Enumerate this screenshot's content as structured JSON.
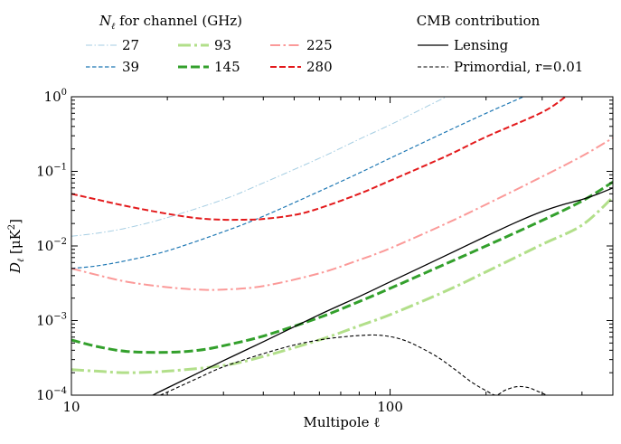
{
  "chart_data": {
    "type": "line",
    "xscale": "log",
    "yscale": "log",
    "xlim": [
      10,
      500
    ],
    "ylim": [
      0.0001,
      1
    ],
    "xlabel": "Multipole ℓ",
    "ylabel_main": "D",
    "ylabel_sub": "ℓ",
    "ylabel_unit": " [μK",
    "ylabel_exp": "2",
    "ylabel_close": "]",
    "x_ticks": [
      {
        "value": 10,
        "base": "10",
        "exp": "1",
        "plain": "10"
      },
      {
        "value": 100,
        "base": "10",
        "exp": "2",
        "plain": "100"
      }
    ],
    "y_ticks": [
      {
        "value": 0.0001,
        "base": "10",
        "exp": "−4"
      },
      {
        "value": 0.001,
        "base": "10",
        "exp": "−3"
      },
      {
        "value": 0.01,
        "base": "10",
        "exp": "−2"
      },
      {
        "value": 0.1,
        "base": "10",
        "exp": "−1"
      },
      {
        "value": 1,
        "base": "10",
        "exp": "0"
      }
    ],
    "legend_noise_title_sym": "N",
    "legend_noise_title_sub": "ℓ",
    "legend_noise_title_rest": " for channel (GHz)",
    "legend_noise_placement": "top-left (above axes)",
    "legend_cmb_title": "CMB contribution",
    "legend_cmb_placement": "top-right (above axes)",
    "noise_series": [
      {
        "name": "27",
        "color": "#a6cee3",
        "style": "dashdot-thin",
        "points": [
          [
            10,
            0.0135
          ],
          [
            12,
            0.0148
          ],
          [
            15,
            0.0175
          ],
          [
            20,
            0.024
          ],
          [
            30,
            0.042
          ],
          [
            40,
            0.07
          ],
          [
            60,
            0.15
          ],
          [
            80,
            0.27
          ],
          [
            100,
            0.42
          ],
          [
            120,
            0.62
          ],
          [
            150,
            1.0
          ]
        ]
      },
      {
        "name": "39",
        "color": "#1f78b4",
        "style": "dashed-thin",
        "points": [
          [
            10,
            0.005
          ],
          [
            12,
            0.0054
          ],
          [
            15,
            0.0064
          ],
          [
            20,
            0.0086
          ],
          [
            30,
            0.0155
          ],
          [
            40,
            0.025
          ],
          [
            60,
            0.054
          ],
          [
            80,
            0.095
          ],
          [
            100,
            0.15
          ],
          [
            150,
            0.34
          ],
          [
            200,
            0.6
          ],
          [
            262,
            1.0
          ]
        ]
      },
      {
        "name": "93",
        "color": "#b2df8a",
        "style": "dashdot-thick",
        "points": [
          [
            10,
            0.00022
          ],
          [
            12,
            0.00021
          ],
          [
            15,
            0.0002
          ],
          [
            20,
            0.00021
          ],
          [
            30,
            0.00025
          ],
          [
            40,
            0.00033
          ],
          [
            60,
            0.00055
          ],
          [
            80,
            0.00085
          ],
          [
            100,
            0.0012
          ],
          [
            150,
            0.0025
          ],
          [
            200,
            0.0045
          ],
          [
            300,
            0.0105
          ],
          [
            400,
            0.019
          ],
          [
            500,
            0.045
          ]
        ]
      },
      {
        "name": "145",
        "color": "#33a02c",
        "style": "dashed-thick",
        "points": [
          [
            10,
            0.00055
          ],
          [
            12,
            0.00045
          ],
          [
            15,
            0.000385
          ],
          [
            20,
            0.000375
          ],
          [
            25,
            0.0004
          ],
          [
            30,
            0.00046
          ],
          [
            40,
            0.00062
          ],
          [
            60,
            0.0011
          ],
          [
            80,
            0.0018
          ],
          [
            100,
            0.0027
          ],
          [
            150,
            0.0058
          ],
          [
            200,
            0.01
          ],
          [
            300,
            0.022
          ],
          [
            400,
            0.04
          ],
          [
            500,
            0.072
          ]
        ]
      },
      {
        "name": "225",
        "color": "#fb9a99",
        "style": "dashdot-medium",
        "points": [
          [
            10,
            0.005
          ],
          [
            12,
            0.0041
          ],
          [
            15,
            0.0033
          ],
          [
            20,
            0.0028
          ],
          [
            25,
            0.0026
          ],
          [
            30,
            0.0026
          ],
          [
            40,
            0.0029
          ],
          [
            60,
            0.0043
          ],
          [
            80,
            0.0065
          ],
          [
            100,
            0.0093
          ],
          [
            150,
            0.02
          ],
          [
            200,
            0.036
          ],
          [
            300,
            0.085
          ],
          [
            400,
            0.16
          ],
          [
            500,
            0.28
          ]
        ]
      },
      {
        "name": "280",
        "color": "#e31a1c",
        "style": "dashed-medium",
        "points": [
          [
            10,
            0.05
          ],
          [
            12,
            0.042
          ],
          [
            15,
            0.034
          ],
          [
            20,
            0.027
          ],
          [
            25,
            0.0235
          ],
          [
            30,
            0.0225
          ],
          [
            35,
            0.0225
          ],
          [
            40,
            0.023
          ],
          [
            50,
            0.026
          ],
          [
            60,
            0.032
          ],
          [
            80,
            0.05
          ],
          [
            100,
            0.075
          ],
          [
            150,
            0.16
          ],
          [
            200,
            0.29
          ],
          [
            300,
            0.62
          ],
          [
            355,
            1.0
          ]
        ]
      }
    ],
    "cmb_series": [
      {
        "name": "Lensing",
        "color": "#000000",
        "style": "solid",
        "points": [
          [
            18,
            0.0001
          ],
          [
            20,
            0.000125
          ],
          [
            30,
            0.00029
          ],
          [
            40,
            0.00052
          ],
          [
            60,
            0.0012
          ],
          [
            80,
            0.0021
          ],
          [
            100,
            0.0033
          ],
          [
            150,
            0.0075
          ],
          [
            200,
            0.0135
          ],
          [
            250,
            0.021
          ],
          [
            300,
            0.029
          ],
          [
            350,
            0.036
          ],
          [
            400,
            0.042
          ],
          [
            450,
            0.05
          ],
          [
            500,
            0.06
          ]
        ]
      },
      {
        "name": "Primordial, r=0.01",
        "color": "#000000",
        "style": "dashed-fine",
        "points": [
          [
            19,
            0.0001
          ],
          [
            20,
            0.00011
          ],
          [
            25,
            0.00017
          ],
          [
            30,
            0.00024
          ],
          [
            40,
            0.00036
          ],
          [
            50,
            0.00047
          ],
          [
            60,
            0.00055
          ],
          [
            70,
            0.0006
          ],
          [
            80,
            0.00063
          ],
          [
            90,
            0.00064
          ],
          [
            100,
            0.00061
          ],
          [
            110,
            0.00055
          ],
          [
            120,
            0.00047
          ],
          [
            140,
            0.00033
          ],
          [
            160,
            0.00022
          ],
          [
            180,
            0.00015
          ],
          [
            200,
            0.000115
          ],
          [
            215,
            0.0001
          ],
          [
            230,
            0.000117
          ],
          [
            250,
            0.00013
          ],
          [
            270,
            0.000127
          ],
          [
            290,
            0.000113
          ],
          [
            310,
            0.0001
          ]
        ]
      }
    ]
  }
}
